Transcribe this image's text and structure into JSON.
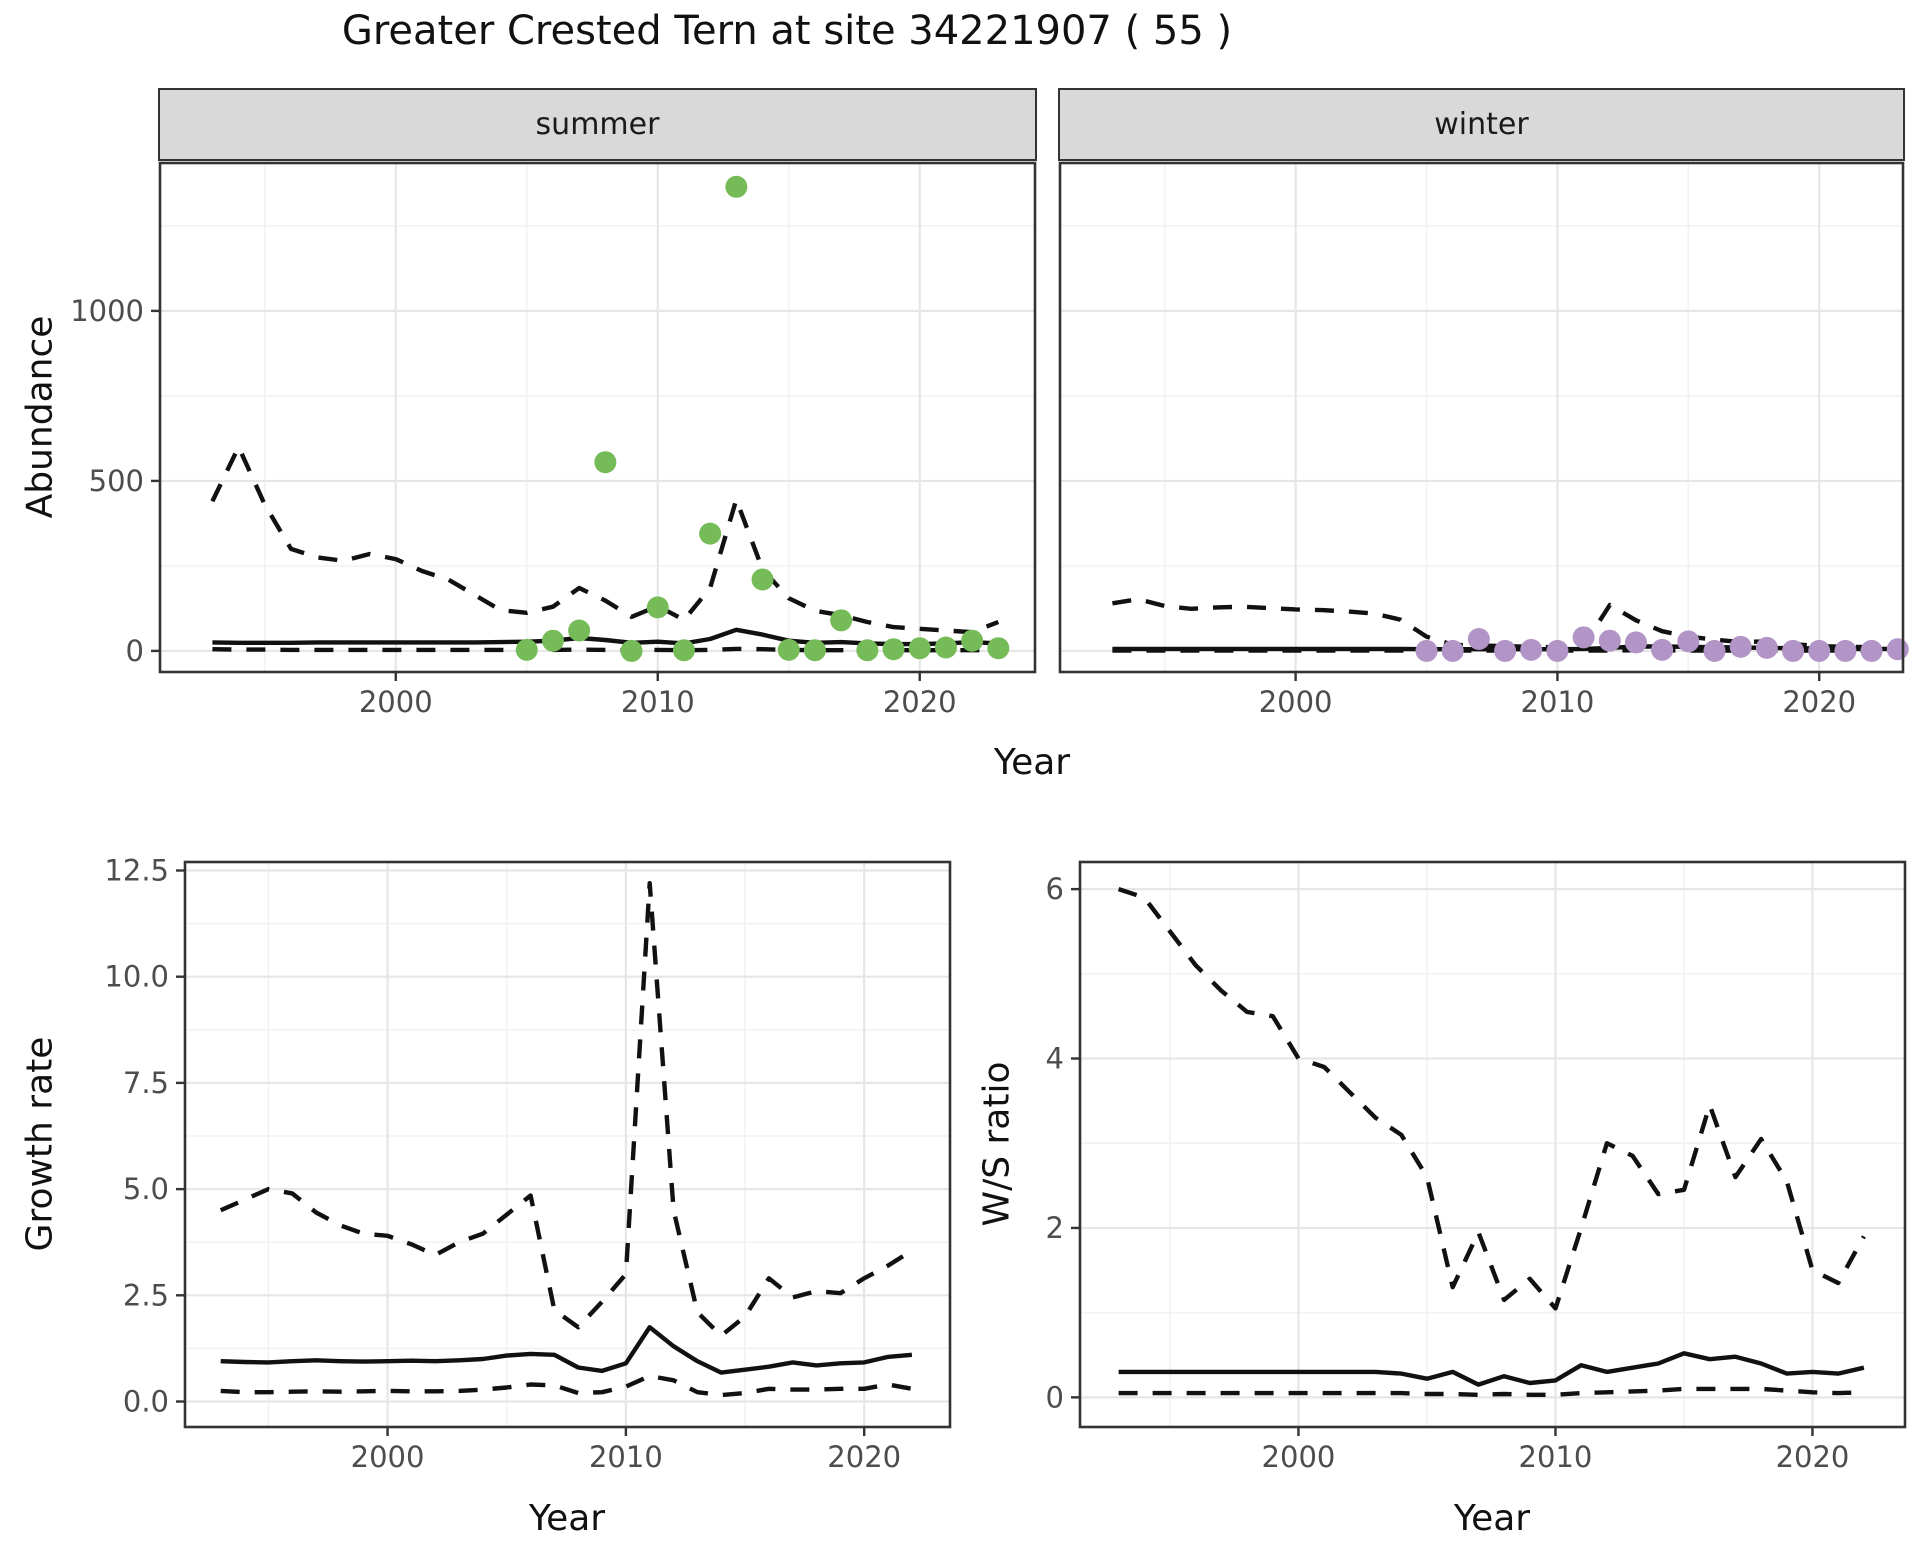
{
  "title": "Greater Crested Tern at site 34221907 ( 55 )",
  "top_xlabel": "Year",
  "colors": {
    "summer_point": "#75BB58",
    "winter_point": "#B294C7",
    "line": "#111111",
    "strip_bg": "#D9D9D9",
    "grid_major": "#E6E6E6",
    "grid_minor": "#F2F2F2",
    "panel_border": "#333333",
    "tick_text": "#4D4D4D",
    "title_text": "#111111"
  },
  "chart_data": [
    {
      "type": "line+scatter",
      "facet": "summer",
      "ylabel": "Abundance",
      "xlabel": "Year"
    },
    {
      "type": "line+scatter",
      "facet": "winter",
      "ylabel": "Abundance",
      "xlabel": "Year"
    },
    {
      "type": "line",
      "ylabel": "Growth rate",
      "xlabel": "Year"
    },
    {
      "type": "line",
      "ylabel": "W/S ratio",
      "xlabel": "Year"
    }
  ],
  "charts": {
    "summer_abundance": {
      "facet_label": "summer",
      "ylabel": "Abundance",
      "xlabel": "Year",
      "xlim": [
        1991.0,
        2024.4
      ],
      "ylim": [
        -62,
        1435
      ],
      "xticks": [
        2000,
        2010,
        2020
      ],
      "xtick_labels": [
        "2000",
        "2010",
        "2020"
      ],
      "ytick_values": [
        0,
        500,
        1000
      ],
      "ytick_labels": [
        "0",
        "500",
        "1000"
      ],
      "show_ytick_labels": true,
      "line_years": [
        1993,
        1994,
        1995,
        1996,
        1997,
        1998,
        1999,
        2000,
        2001,
        2002,
        2003,
        2004,
        2005,
        2006,
        2007,
        2008,
        2009,
        2010,
        2011,
        2012,
        2013,
        2014,
        2015,
        2016,
        2017,
        2018,
        2019,
        2020,
        2021,
        2022,
        2023
      ],
      "median": [
        25,
        24,
        24,
        24,
        25,
        25,
        25,
        25,
        25,
        25,
        25,
        26,
        27,
        30,
        38,
        32,
        24,
        27,
        22,
        35,
        62,
        48,
        30,
        24,
        26,
        22,
        20,
        20,
        22,
        26,
        22
      ],
      "upper": [
        440,
        600,
        430,
        300,
        275,
        265,
        285,
        270,
        235,
        210,
        165,
        120,
        112,
        130,
        185,
        148,
        100,
        132,
        91,
        185,
        445,
        240,
        155,
        118,
        105,
        85,
        70,
        65,
        60,
        55,
        85
      ],
      "lower": [
        5,
        4,
        4,
        3,
        3,
        3,
        3,
        3,
        3,
        3,
        3,
        3,
        3,
        3,
        4,
        3,
        2,
        3,
        2,
        3,
        6,
        5,
        3,
        2,
        2,
        2,
        2,
        2,
        2,
        2,
        3
      ],
      "point_years": [
        2005,
        2006,
        2007,
        2008,
        2009,
        2010,
        2011,
        2012,
        2013,
        2014,
        2015,
        2016,
        2017,
        2018,
        2019,
        2020,
        2021,
        2022,
        2023
      ],
      "point_values": [
        3,
        30,
        60,
        555,
        0,
        128,
        2,
        345,
        1365,
        210,
        3,
        2,
        90,
        2,
        5,
        8,
        10,
        30,
        8
      ],
      "point_color": "#75BB58"
    },
    "winter_abundance": {
      "facet_label": "winter",
      "ylabel": "Abundance",
      "xlabel": "Year",
      "xlim": [
        1991.0,
        2023.2
      ],
      "ylim": [
        -62,
        1435
      ],
      "xticks": [
        2000,
        2010,
        2020
      ],
      "xtick_labels": [
        "2000",
        "2010",
        "2020"
      ],
      "ytick_values": [
        0,
        500,
        1000
      ],
      "ytick_labels": [
        "0",
        "500",
        "1000"
      ],
      "show_ytick_labels": false,
      "line_years": [
        1993,
        1994,
        1995,
        1996,
        1997,
        1998,
        1999,
        2000,
        2001,
        2002,
        2003,
        2004,
        2005,
        2006,
        2007,
        2008,
        2009,
        2010,
        2011,
        2012,
        2013,
        2014,
        2015,
        2016,
        2017,
        2018,
        2019,
        2020,
        2021,
        2022,
        2023
      ],
      "median": [
        6,
        6,
        6,
        6,
        6,
        6,
        6,
        6,
        6,
        6,
        6,
        6,
        5,
        5,
        5,
        5,
        5,
        5,
        6,
        9,
        13,
        13,
        12,
        11,
        10,
        9,
        8,
        7,
        6,
        6,
        6
      ],
      "upper": [
        140,
        152,
        132,
        124,
        128,
        130,
        126,
        122,
        120,
        116,
        110,
        92,
        42,
        18,
        16,
        14,
        12,
        11,
        14,
        135,
        90,
        58,
        42,
        33,
        26,
        28,
        20,
        14,
        12,
        11,
        18
      ],
      "lower": [
        1,
        1,
        1,
        1,
        1,
        1,
        1,
        1,
        1,
        1,
        1,
        1,
        1,
        1,
        1,
        1,
        1,
        1,
        1,
        1,
        2,
        2,
        1,
        1,
        1,
        1,
        1,
        1,
        1,
        1,
        1
      ],
      "point_years": [
        2005,
        2006,
        2007,
        2008,
        2009,
        2010,
        2011,
        2012,
        2013,
        2014,
        2015,
        2016,
        2017,
        2018,
        2019,
        2020,
        2021,
        2022,
        2023
      ],
      "point_values": [
        0,
        0,
        35,
        0,
        3,
        0,
        40,
        30,
        25,
        3,
        28,
        0,
        12,
        9,
        0,
        0,
        0,
        0,
        5
      ],
      "point_color": "#B294C7"
    },
    "growth_rate": {
      "ylabel": "Growth rate",
      "xlabel": "Year",
      "xlim": [
        1991.5,
        2023.6
      ],
      "ylim": [
        -0.6,
        12.7
      ],
      "xticks": [
        2000,
        2010,
        2020
      ],
      "xtick_labels": [
        "2000",
        "2010",
        "2020"
      ],
      "ytick_values": [
        0,
        2.5,
        5,
        7.5,
        10,
        12.5
      ],
      "ytick_labels": [
        "0.0",
        "2.5",
        "5.0",
        "7.5",
        "10.0",
        "12.5"
      ],
      "show_ytick_labels": true,
      "line_years": [
        1993,
        1994,
        1995,
        1996,
        1997,
        1998,
        1999,
        2000,
        2001,
        2002,
        2003,
        2004,
        2005,
        2006,
        2007,
        2008,
        2009,
        2010,
        2011,
        2012,
        2013,
        2014,
        2015,
        2016,
        2017,
        2018,
        2019,
        2020,
        2021,
        2022
      ],
      "median": [
        0.95,
        0.93,
        0.92,
        0.95,
        0.97,
        0.95,
        0.94,
        0.95,
        0.96,
        0.95,
        0.97,
        1.0,
        1.08,
        1.12,
        1.1,
        0.8,
        0.72,
        0.9,
        1.75,
        1.3,
        0.95,
        0.68,
        0.75,
        0.82,
        0.92,
        0.85,
        0.9,
        0.92,
        1.05,
        1.1
      ],
      "upper": [
        4.5,
        4.75,
        5.0,
        4.9,
        4.45,
        4.15,
        3.95,
        3.9,
        3.7,
        3.45,
        3.75,
        3.95,
        4.4,
        4.85,
        2.15,
        1.75,
        2.35,
        3.0,
        12.2,
        4.5,
        2.1,
        1.55,
        2.0,
        2.9,
        2.45,
        2.6,
        2.55,
        2.9,
        3.2,
        3.55
      ],
      "lower": [
        0.25,
        0.22,
        0.22,
        0.23,
        0.24,
        0.23,
        0.24,
        0.25,
        0.24,
        0.24,
        0.25,
        0.28,
        0.33,
        0.4,
        0.38,
        0.2,
        0.22,
        0.35,
        0.6,
        0.5,
        0.22,
        0.15,
        0.2,
        0.3,
        0.28,
        0.28,
        0.3,
        0.3,
        0.4,
        0.3
      ],
      "point_years": [],
      "point_values": [],
      "point_color": "#111111"
    },
    "ws_ratio": {
      "ylabel": "W/S ratio",
      "xlabel": "Year",
      "xlim": [
        1991.5,
        2023.6
      ],
      "ylim": [
        -0.35,
        6.32
      ],
      "xticks": [
        2000,
        2010,
        2020
      ],
      "xtick_labels": [
        "2000",
        "2010",
        "2020"
      ],
      "ytick_values": [
        0,
        2,
        4,
        6
      ],
      "ytick_labels": [
        "0",
        "2",
        "4",
        "6"
      ],
      "show_ytick_labels": true,
      "line_years": [
        1993,
        1994,
        1995,
        1996,
        1997,
        1998,
        1999,
        2000,
        2001,
        2002,
        2003,
        2004,
        2005,
        2006,
        2007,
        2008,
        2009,
        2010,
        2011,
        2012,
        2013,
        2014,
        2015,
        2016,
        2017,
        2018,
        2019,
        2020,
        2021,
        2022
      ],
      "median": [
        0.3,
        0.3,
        0.3,
        0.3,
        0.3,
        0.3,
        0.3,
        0.3,
        0.3,
        0.3,
        0.3,
        0.28,
        0.22,
        0.3,
        0.15,
        0.25,
        0.17,
        0.2,
        0.38,
        0.3,
        0.35,
        0.4,
        0.52,
        0.45,
        0.48,
        0.4,
        0.28,
        0.3,
        0.28,
        0.35
      ],
      "upper": [
        6.0,
        5.9,
        5.5,
        5.1,
        4.8,
        4.55,
        4.5,
        4.0,
        3.9,
        3.6,
        3.3,
        3.1,
        2.6,
        1.3,
        1.95,
        1.15,
        1.4,
        1.05,
        2.0,
        3.0,
        2.85,
        2.4,
        2.45,
        3.45,
        2.6,
        3.05,
        2.55,
        1.5,
        1.35,
        1.9
      ],
      "lower": [
        0.05,
        0.05,
        0.05,
        0.05,
        0.05,
        0.05,
        0.05,
        0.05,
        0.05,
        0.05,
        0.05,
        0.05,
        0.04,
        0.04,
        0.03,
        0.04,
        0.03,
        0.03,
        0.05,
        0.06,
        0.07,
        0.08,
        0.1,
        0.1,
        0.1,
        0.1,
        0.08,
        0.06,
        0.05,
        0.06
      ]
    }
  }
}
